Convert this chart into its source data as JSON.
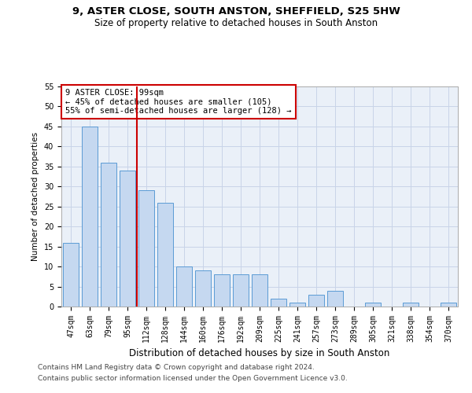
{
  "title1": "9, ASTER CLOSE, SOUTH ANSTON, SHEFFIELD, S25 5HW",
  "title2": "Size of property relative to detached houses in South Anston",
  "xlabel": "Distribution of detached houses by size in South Anston",
  "ylabel": "Number of detached properties",
  "categories": [
    "47sqm",
    "63sqm",
    "79sqm",
    "95sqm",
    "112sqm",
    "128sqm",
    "144sqm",
    "160sqm",
    "176sqm",
    "192sqm",
    "209sqm",
    "225sqm",
    "241sqm",
    "257sqm",
    "273sqm",
    "289sqm",
    "305sqm",
    "321sqm",
    "338sqm",
    "354sqm",
    "370sqm"
  ],
  "values": [
    16,
    45,
    36,
    34,
    29,
    26,
    10,
    9,
    8,
    8,
    8,
    2,
    1,
    3,
    4,
    0,
    1,
    0,
    1,
    0,
    1
  ],
  "bar_color": "#c5d8f0",
  "bar_edge_color": "#5b9bd5",
  "vline_x": 3.5,
  "vline_color": "#cc0000",
  "annotation_text": "9 ASTER CLOSE: 99sqm\n← 45% of detached houses are smaller (105)\n55% of semi-detached houses are larger (128) →",
  "annotation_box_color": "#ffffff",
  "annotation_box_edge": "#cc0000",
  "ylim": [
    0,
    55
  ],
  "yticks": [
    0,
    5,
    10,
    15,
    20,
    25,
    30,
    35,
    40,
    45,
    50,
    55
  ],
  "footer1": "Contains HM Land Registry data © Crown copyright and database right 2024.",
  "footer2": "Contains public sector information licensed under the Open Government Licence v3.0.",
  "bg_color": "#ffffff",
  "grid_color": "#c8d4e8",
  "ax_bg_color": "#eaf0f8",
  "title_fontsize": 9.5,
  "subtitle_fontsize": 8.5,
  "tick_fontsize": 7,
  "xlabel_fontsize": 8.5,
  "ylabel_fontsize": 7.5,
  "annotation_fontsize": 7.5,
  "footer_fontsize": 6.5
}
